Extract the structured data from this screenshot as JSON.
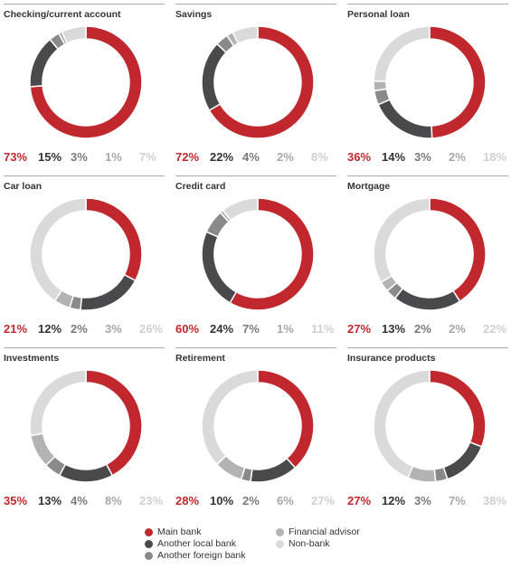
{
  "colors": {
    "main_bank": "#c1282d",
    "another_local_bank": "#4a4a4d",
    "another_foreign_bank": "#8a8a8d",
    "financial_advisor": "#b3b3b6",
    "non_bank": "#dadadb"
  },
  "legend": {
    "items": [
      {
        "label": "Main bank",
        "color": "#c1282d"
      },
      {
        "label": "Another local bank",
        "color": "#4a4a4d"
      },
      {
        "label": "Another foreign bank",
        "color": "#8a8a8d"
      },
      {
        "label": "Financial advisor",
        "color": "#b3b3b6"
      },
      {
        "label": "Non-bank",
        "color": "#dadadb"
      }
    ]
  },
  "chart_data": [
    {
      "type": "pie",
      "title": "Checking/current account",
      "values": [
        73,
        15,
        3,
        1,
        7
      ],
      "labels": [
        "73%",
        "15%",
        "3%",
        "1%",
        "7%"
      ]
    },
    {
      "type": "pie",
      "title": "Savings",
      "values": [
        72,
        22,
        4,
        2,
        8
      ],
      "labels": [
        "72%",
        "22%",
        "4%",
        "2%",
        "8%"
      ]
    },
    {
      "type": "pie",
      "title": "Personal loan",
      "values": [
        36,
        14,
        3,
        2,
        18
      ],
      "labels": [
        "36%",
        "14%",
        "3%",
        "2%",
        "18%"
      ]
    },
    {
      "type": "pie",
      "title": "Car loan",
      "values": [
        21,
        12,
        2,
        3,
        26
      ],
      "labels": [
        "21%",
        "12%",
        "2%",
        "3%",
        "26%"
      ]
    },
    {
      "type": "pie",
      "title": "Credit card",
      "values": [
        60,
        24,
        7,
        1,
        11
      ],
      "labels": [
        "60%",
        "24%",
        "7%",
        "1%",
        "11%"
      ]
    },
    {
      "type": "pie",
      "title": "Mortgage",
      "values": [
        27,
        13,
        2,
        2,
        22
      ],
      "labels": [
        "27%",
        "13%",
        "2%",
        "2%",
        "22%"
      ]
    },
    {
      "type": "pie",
      "title": "Investments",
      "values": [
        35,
        13,
        4,
        8,
        23
      ],
      "labels": [
        "35%",
        "13%",
        "4%",
        "8%",
        "23%"
      ]
    },
    {
      "type": "pie",
      "title": "Retirement",
      "values": [
        28,
        10,
        2,
        6,
        27
      ],
      "labels": [
        "28%",
        "10%",
        "2%",
        "6%",
        "27%"
      ]
    },
    {
      "type": "pie",
      "title": "Insurance products",
      "values": [
        27,
        12,
        3,
        7,
        38
      ],
      "labels": [
        "27%",
        "12%",
        "3%",
        "7%",
        "38%"
      ]
    }
  ]
}
